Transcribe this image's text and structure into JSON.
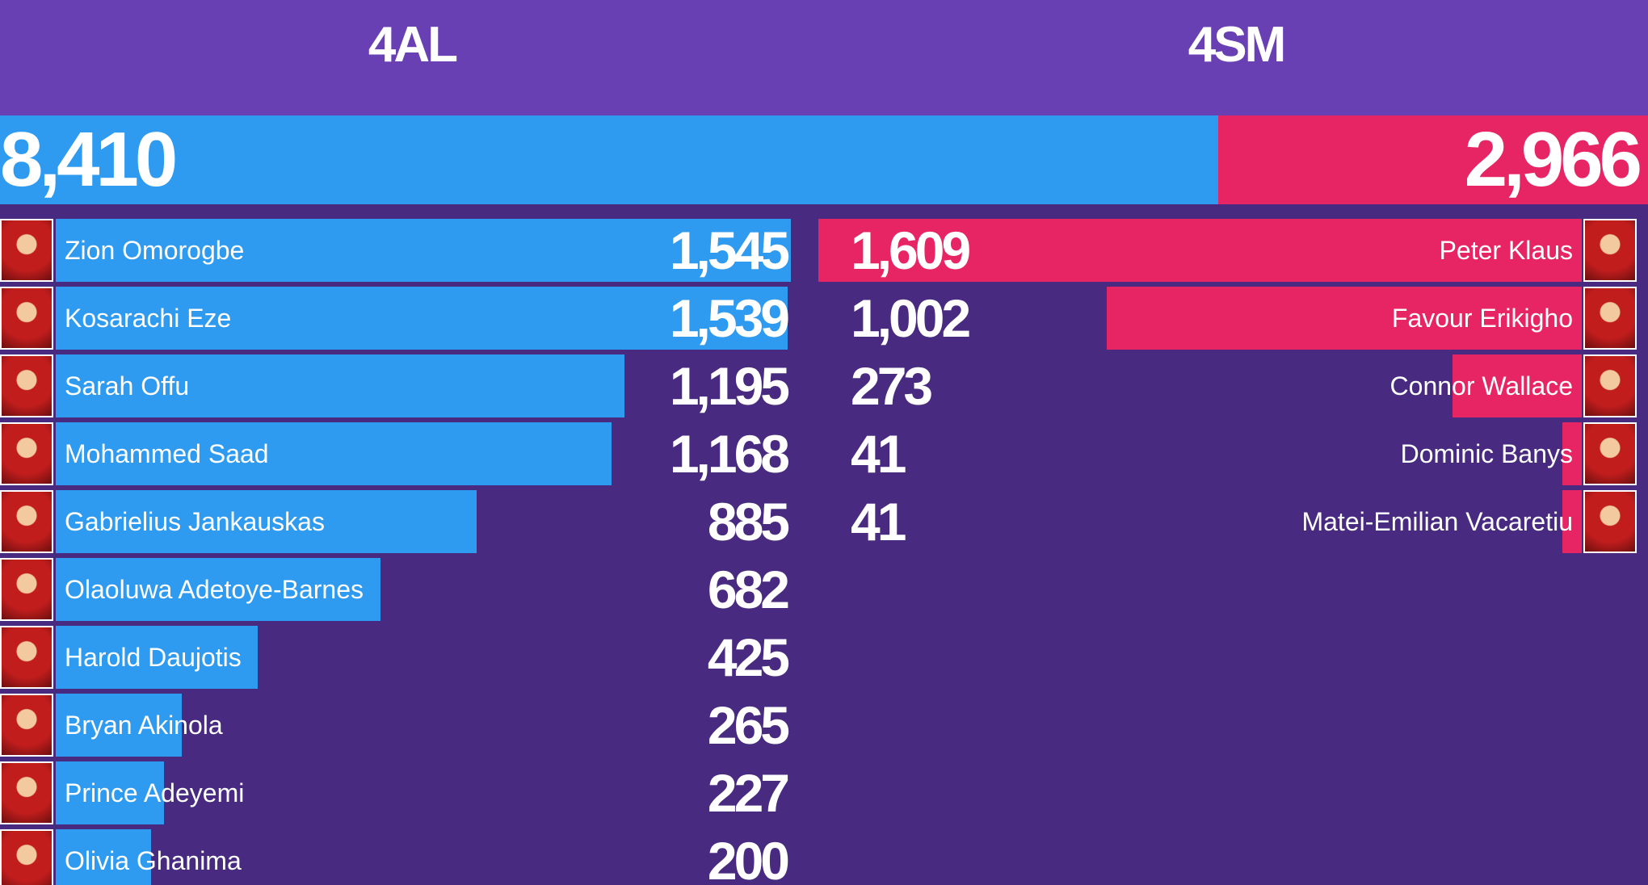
{
  "teams": [
    {
      "name": "4AL",
      "total": 8410,
      "total_label": "8,410",
      "color": "#2e9af0",
      "players": [
        {
          "name": "Zion Omorogbe",
          "score": 1545,
          "score_label": "1,545"
        },
        {
          "name": "Kosarachi Eze",
          "score": 1539,
          "score_label": "1,539"
        },
        {
          "name": "Sarah Offu",
          "score": 1195,
          "score_label": "1,195"
        },
        {
          "name": "Mohammed Saad",
          "score": 1168,
          "score_label": "1,168"
        },
        {
          "name": "Gabrielius Jankauskas",
          "score": 885
        },
        {
          "name": "Olaoluwa Adetoye-Barnes",
          "score": 682
        },
        {
          "name": "Harold Daujotis",
          "score": 425
        },
        {
          "name": "Bryan Akinola",
          "score": 265
        },
        {
          "name": "Prince Adeyemi",
          "score": 227
        },
        {
          "name": "Olivia Ghanima",
          "score": 200
        }
      ]
    },
    {
      "name": "4SM",
      "total": 2966,
      "total_label": "2,966",
      "color": "#e72565",
      "players": [
        {
          "name": "Peter Klaus",
          "score": 1609,
          "score_label": "1,609"
        },
        {
          "name": "Favour Erikigho",
          "score": 1002,
          "score_label": "1,002"
        },
        {
          "name": "Connor Wallace",
          "score": 273
        },
        {
          "name": "Dominic Banys",
          "score": 41
        },
        {
          "name": "Matei-Emilian Vacaretiu",
          "score": 41
        }
      ]
    }
  ]
}
